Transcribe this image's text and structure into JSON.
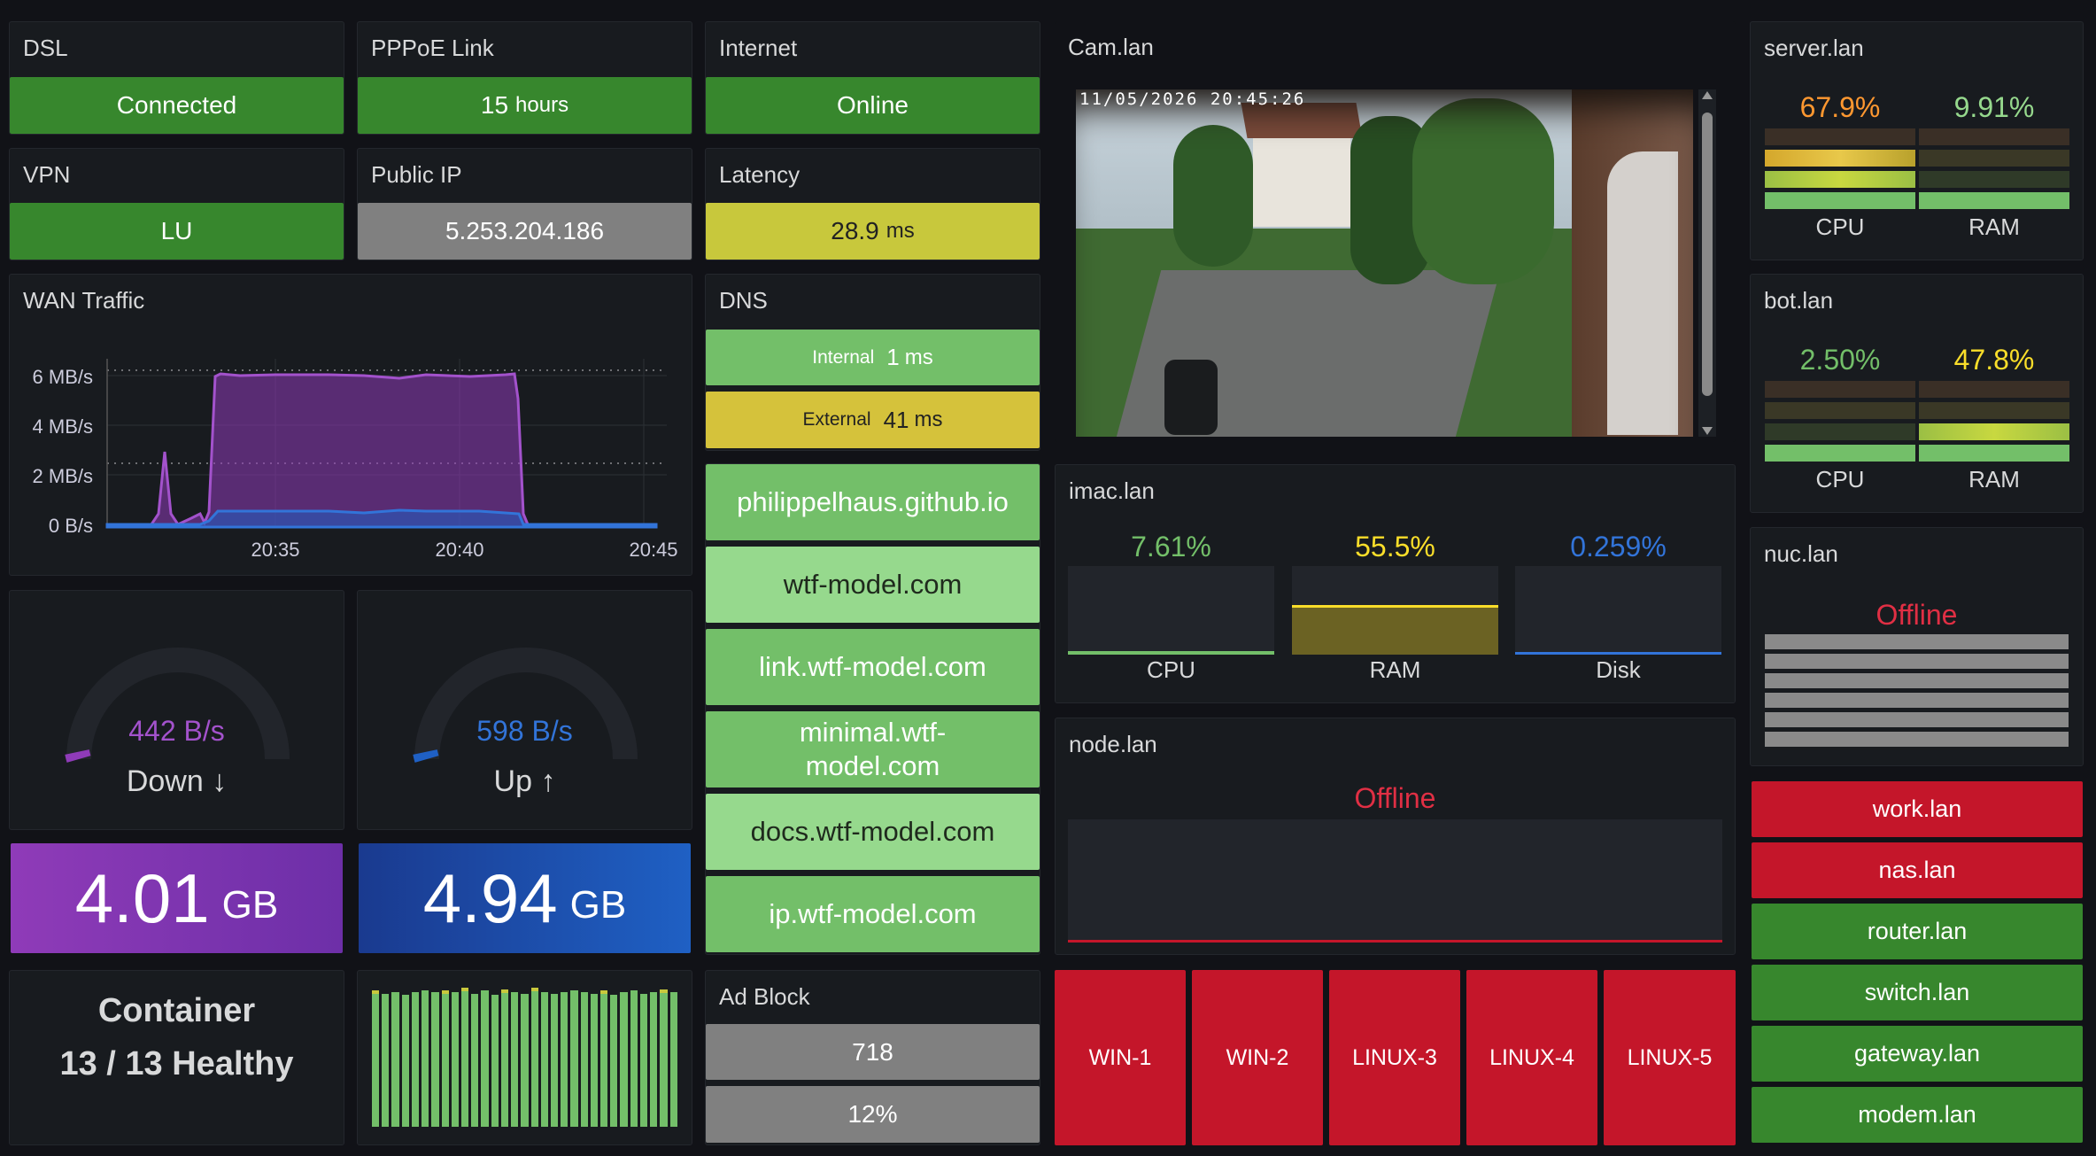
{
  "colors": {
    "green": "#37872d",
    "light_green": "#73bf69",
    "red": "#c4162a",
    "purple": "#8f3bb8",
    "blue": "#1f60c4",
    "orange": "#ff9830",
    "yellow": "#fade2a"
  },
  "dsl": {
    "title": "DSL",
    "value": "Connected"
  },
  "pppoe": {
    "title": "PPPoE Link",
    "value": "15",
    "unit": "hours"
  },
  "internet": {
    "title": "Internet",
    "value": "Online"
  },
  "vpn": {
    "title": "VPN",
    "value": "LU"
  },
  "public_ip": {
    "title": "Public IP",
    "value": "5.253.204.186"
  },
  "latency": {
    "title": "Latency",
    "value": "28.9",
    "unit": "ms"
  },
  "wan": {
    "title": "WAN Traffic",
    "y_ticks": [
      "6 MB/s",
      "4 MB/s",
      "2 MB/s",
      "0 B/s"
    ],
    "x_ticks": [
      "20:35",
      "20:40",
      "20:45"
    ]
  },
  "dns": {
    "title": "DNS",
    "internal": {
      "label": "Internal",
      "value": "1",
      "unit": "ms"
    },
    "external": {
      "label": "External",
      "value": "41",
      "unit": "ms"
    }
  },
  "sites": [
    {
      "label": "philippelhaus.github.io"
    },
    {
      "label": "wtf-model.com"
    },
    {
      "label": "link.wtf-model.com"
    },
    {
      "label": "minimal.wtf-model.com"
    },
    {
      "label": "docs.wtf-model.com"
    },
    {
      "label": "ip.wtf-model.com"
    }
  ],
  "down": {
    "value": "442 B/s",
    "label": "Down ↓",
    "total": "4.01",
    "total_unit": "GB"
  },
  "up": {
    "value": "598 B/s",
    "label": "Up ↑",
    "total": "4.94",
    "total_unit": "GB"
  },
  "container": {
    "line1": "Container",
    "line2": "13 / 13 Healthy"
  },
  "adblock": {
    "title": "Ad Block",
    "count": "718",
    "percent": "12%"
  },
  "cam": {
    "title": "Cam.lan",
    "timestamp": "11/05/2026 20:45:26"
  },
  "imac": {
    "title": "imac.lan",
    "cpu": {
      "pct": "7.61%",
      "label": "CPU",
      "level": 0.0761
    },
    "ram": {
      "pct": "55.5%",
      "label": "RAM",
      "level": 0.555
    },
    "disk": {
      "pct": "0.259%",
      "label": "Disk",
      "level": 0.00259
    }
  },
  "node": {
    "title": "node.lan",
    "status": "Offline"
  },
  "vms": [
    "WIN-1",
    "WIN-2",
    "LINUX-3",
    "LINUX-4",
    "LINUX-5"
  ],
  "server": {
    "title": "server.lan",
    "cpu": {
      "pct": "67.9%",
      "label": "CPU",
      "level": 0.679
    },
    "ram": {
      "pct": "9.91%",
      "label": "RAM",
      "level": 0.0991
    }
  },
  "bot": {
    "title": "bot.lan",
    "cpu": {
      "pct": "2.50%",
      "label": "CPU",
      "level": 0.025
    },
    "ram": {
      "pct": "47.8%",
      "label": "RAM",
      "level": 0.478
    }
  },
  "nuc": {
    "title": "nuc.lan",
    "status": "Offline"
  },
  "hosts": [
    {
      "label": "work.lan",
      "status": "down"
    },
    {
      "label": "nas.lan",
      "status": "down"
    },
    {
      "label": "router.lan",
      "status": "up"
    },
    {
      "label": "switch.lan",
      "status": "up"
    },
    {
      "label": "gateway.lan",
      "status": "up"
    },
    {
      "label": "modem.lan",
      "status": "up"
    }
  ]
}
